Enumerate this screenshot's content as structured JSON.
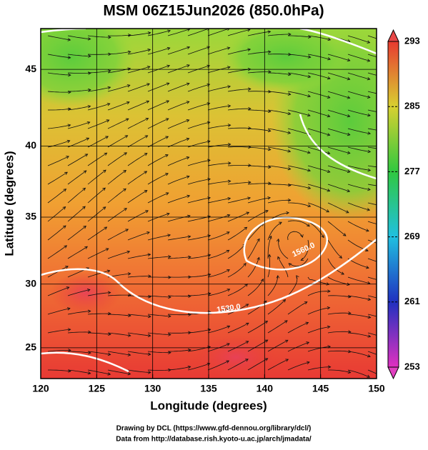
{
  "chart_data": {
    "type": "streamline-map",
    "title": "MSM 06Z15Jun2026 (850.0hPa)",
    "xlabel": "Longitude (degrees)",
    "ylabel": "Latitude  (degrees)",
    "xlim": [
      120,
      150
    ],
    "xticks": [
      120,
      125,
      130,
      135,
      140,
      145,
      150
    ],
    "ylim": [
      22.5,
      47.5
    ],
    "yticks": [
      25,
      30,
      35,
      40,
      45
    ],
    "projection": "mercator",
    "grid": true,
    "colorbar": {
      "lim": [
        253,
        293
      ],
      "ticks": [
        253,
        261,
        269,
        277,
        285,
        293
      ]
    },
    "contour_labels": [
      "1560.0",
      "1530.0"
    ],
    "footer": [
      "Drawing by DCL (https://www.gfd-dennou.org/library/dcl/)",
      "Data from http://database.rish.kyoto-u.ac.jp/arch/jmadata/"
    ]
  }
}
